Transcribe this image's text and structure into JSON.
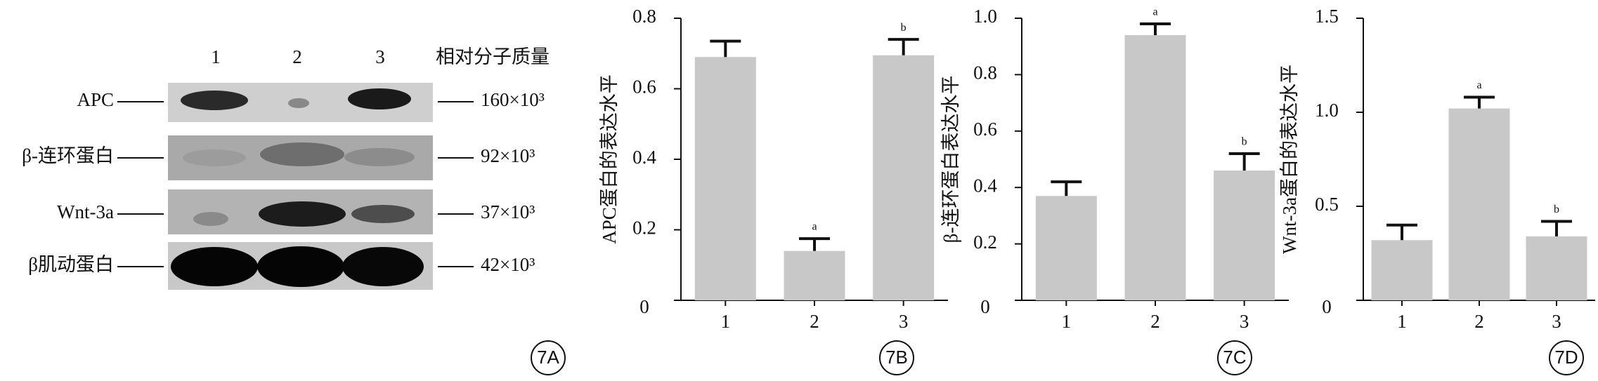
{
  "blot": {
    "panel": "7A",
    "lanes": [
      "1",
      "2",
      "3"
    ],
    "mw_header": "相对分子质量",
    "rows": [
      {
        "label": "APC",
        "mw": "160×10³"
      },
      {
        "label": "β-连环蛋白",
        "mw": "92×10³"
      },
      {
        "label": "Wnt-3a",
        "mw": "37×10³"
      },
      {
        "label": "β肌动蛋白",
        "mw": "42×10³"
      }
    ]
  },
  "chart_data": [
    {
      "type": "bar",
      "panel": "7B",
      "y_label": "APC蛋白的表达水平",
      "categories": [
        "1",
        "2",
        "3"
      ],
      "values": [
        0.69,
        0.14,
        0.695
      ],
      "errors": [
        0.045,
        0.035,
        0.045
      ],
      "bar_labels": [
        null,
        "a",
        "b"
      ],
      "color": "#c8c8c8",
      "ylim": [
        0,
        0.8
      ],
      "yticks": [
        0,
        0.2,
        0.4,
        0.6,
        0.8
      ]
    },
    {
      "type": "bar",
      "panel": "7C",
      "y_label": "β-连环蛋白表达水平",
      "categories": [
        "1",
        "2",
        "3"
      ],
      "values": [
        0.37,
        0.94,
        0.46
      ],
      "errors": [
        0.05,
        0.04,
        0.06
      ],
      "bar_labels": [
        null,
        "a",
        "b"
      ],
      "color": "#c8c8c8",
      "ylim": [
        0,
        1
      ],
      "yticks": [
        0,
        0.2,
        0.4,
        0.6,
        0.8,
        {
          "value": 1,
          "label": "1.0"
        }
      ]
    },
    {
      "type": "bar",
      "panel": "7D",
      "y_label": "Wnt-3a蛋白的表达水平",
      "categories": [
        "1",
        "2",
        "3"
      ],
      "values": [
        0.32,
        1.02,
        0.34
      ],
      "errors": [
        0.08,
        0.06,
        0.08
      ],
      "bar_labels": [
        null,
        "a",
        "b"
      ],
      "color": "#c8c8c8",
      "ylim": [
        0,
        1.5
      ],
      "yticks": [
        0,
        0.5,
        {
          "value": 1,
          "label": "1.0"
        },
        1.5
      ]
    }
  ]
}
